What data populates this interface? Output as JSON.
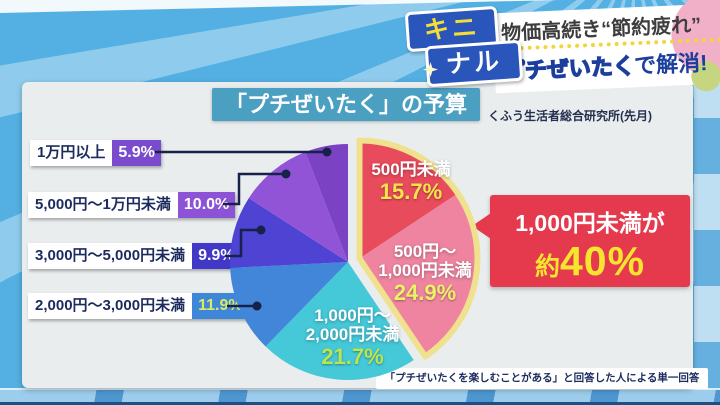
{
  "header": {
    "logo_line1": "キニ",
    "logo_line2": "ナル",
    "headline_top": "物価高続き“節約疲れ”",
    "headline_bottom_highlight": "プチぜいたく",
    "headline_bottom_rest": "で解消!"
  },
  "panel": {
    "title": "「プチぜいたく」の予算",
    "title_bg": "#4b9fc1",
    "source": "くふう生活者総合研究所(先月)",
    "footnote": "「プチぜいたくを楽しむことがある」と回答した人による単一回答",
    "callout": {
      "line1": "1,000円未満が",
      "approx": "約",
      "value": "40%",
      "bg": "#e5394e",
      "value_color": "#f6e52e"
    }
  },
  "legend": [
    {
      "label": "1万円以上",
      "pct": "5.9%",
      "box": "#7a4ccd",
      "txt": "#ffffff"
    },
    {
      "label": "5,000円〜1万円未満",
      "pct": "10.0%",
      "box": "#8d53d6",
      "txt": "#ffffff"
    },
    {
      "label": "3,000円〜5,000円未満",
      "pct": "9.9%",
      "box": "#4238c8",
      "txt": "#ffffff"
    },
    {
      "label": "2,000円〜3,000円未満",
      "pct": "11.9%",
      "box": "#3e86d8",
      "txt": "#dcea62"
    }
  ],
  "chart_data": {
    "type": "pie",
    "title": "「プチぜいたく」の予算",
    "source": "くふう生活者総合研究所(先月)",
    "footnote": "「プチぜいたくを楽しむことがある」と回答した人による単一回答",
    "unit": "%",
    "start_angle_deg": 0,
    "direction": "clockwise",
    "exploded_border_color": "#f0e18e",
    "slices": [
      {
        "label": "500円未満",
        "value": 15.7,
        "color": "#e84b5c",
        "exploded": true
      },
      {
        "label": "500円〜1,000円未満",
        "value": 24.9,
        "color": "#ee84a0",
        "exploded": true
      },
      {
        "label": "1,000円〜2,000円未満",
        "value": 21.7,
        "color": "#45c8d8",
        "exploded": false
      },
      {
        "label": "2,000円〜3,000円未満",
        "value": 11.9,
        "color": "#4286da",
        "exploded": false
      },
      {
        "label": "3,000円〜5,000円未満",
        "value": 9.9,
        "color": "#4f43d4",
        "exploded": false
      },
      {
        "label": "5,000円〜1万円未満",
        "value": 10.0,
        "color": "#9154d6",
        "exploded": false
      },
      {
        "label": "1万円以上",
        "value": 5.9,
        "color": "#7b43c4",
        "exploded": false
      }
    ],
    "annotation": "1,000円未満が約40%"
  },
  "pie_display": [
    {
      "l1": "500円未満",
      "l2": "",
      "pct": "15.7%",
      "pct_color": "#f6e44c"
    },
    {
      "l1": "500円〜",
      "l2": "1,000円未満",
      "pct": "24.9%",
      "pct_color": "#eef065"
    },
    {
      "l1": "1,000円〜",
      "l2": "2,000円未満",
      "pct": "21.7%",
      "pct_color": "#b9e54d"
    }
  ]
}
